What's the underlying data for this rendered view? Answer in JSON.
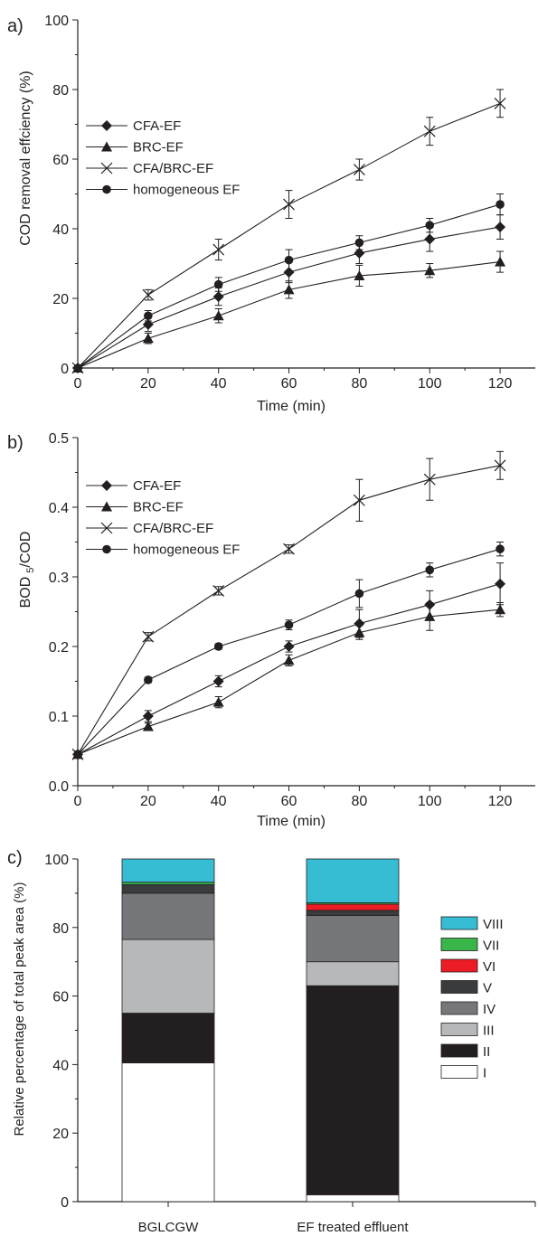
{
  "chart_data": [
    {
      "panel_label": "a)",
      "type": "line",
      "xlabel": "Time (min)",
      "ylabel": "COD removal effciency (%)",
      "xlim": [
        0,
        130
      ],
      "ylim": [
        0,
        100
      ],
      "x_ticks": [
        0,
        20,
        40,
        60,
        80,
        100,
        120
      ],
      "x_tick_labels": [
        "0",
        "20",
        "40",
        "60",
        "80",
        "100",
        "120"
      ],
      "y_ticks": [
        0,
        20,
        40,
        60,
        80,
        100
      ],
      "y_tick_labels": [
        "0",
        "20",
        "40",
        "60",
        "80",
        "100"
      ],
      "x": [
        0,
        20,
        40,
        60,
        80,
        100,
        120
      ],
      "legend_position": "top-left",
      "series": [
        {
          "name": "CFA-EF",
          "marker": "diamond",
          "values": [
            0,
            12.5,
            20.5,
            27.5,
            33,
            37,
            40.5
          ],
          "errors": [
            0,
            2,
            2.5,
            3,
            3,
            3.5,
            3.5
          ]
        },
        {
          "name": "BRC-EF",
          "marker": "triangle",
          "values": [
            0,
            8.5,
            15,
            22.5,
            26.5,
            28,
            30.5
          ],
          "errors": [
            0,
            1.5,
            2,
            2.5,
            3,
            2,
            3
          ]
        },
        {
          "name": "CFA/BRC-EF",
          "marker": "cross",
          "values": [
            0,
            21,
            34,
            47,
            57,
            68,
            76
          ],
          "errors": [
            0,
            1.5,
            3,
            4,
            3,
            4,
            4
          ]
        },
        {
          "name": "homogeneous EF",
          "marker": "circle",
          "values": [
            0,
            15,
            24,
            31,
            36,
            41,
            47
          ],
          "errors": [
            0,
            1.5,
            2,
            3,
            2,
            2,
            3
          ]
        }
      ]
    },
    {
      "panel_label": "b)",
      "type": "line",
      "xlabel": "Time (min)",
      "ylabel_main": "BOD",
      "ylabel_sub": "5",
      "ylabel_tail": "/COD",
      "xlim": [
        0,
        130
      ],
      "ylim": [
        0,
        0.5
      ],
      "x_ticks": [
        0,
        20,
        40,
        60,
        80,
        100,
        120
      ],
      "x_tick_labels": [
        "0",
        "20",
        "40",
        "60",
        "80",
        "100",
        "120"
      ],
      "y_ticks": [
        0,
        0.1,
        0.2,
        0.3,
        0.4,
        0.5
      ],
      "y_tick_labels": [
        "0.0",
        "0.1",
        "0.2",
        "0.3",
        "0.4",
        "0.5"
      ],
      "x": [
        0,
        20,
        40,
        60,
        80,
        100,
        120
      ],
      "legend_position": "top-left",
      "series": [
        {
          "name": "CFA-EF",
          "marker": "diamond",
          "values": [
            0.045,
            0.1,
            0.15,
            0.2,
            0.233,
            0.26,
            0.29
          ],
          "errors": [
            0,
            0.008,
            0.008,
            0.008,
            0.02,
            0.02,
            0.03
          ]
        },
        {
          "name": "BRC-EF",
          "marker": "triangle",
          "values": [
            0.045,
            0.085,
            0.12,
            0.18,
            0.22,
            0.243,
            0.253
          ],
          "errors": [
            0,
            0.005,
            0.008,
            0.008,
            0.01,
            0.02,
            0.01
          ]
        },
        {
          "name": "CFA/BRC-EF",
          "marker": "cross",
          "values": [
            0.045,
            0.214,
            0.28,
            0.34,
            0.41,
            0.44,
            0.46
          ],
          "errors": [
            0,
            0.006,
            0.006,
            0.006,
            0.03,
            0.03,
            0.02
          ]
        },
        {
          "name": "homogeneous EF",
          "marker": "circle",
          "values": [
            0.045,
            0.152,
            0.2,
            0.231,
            0.276,
            0.31,
            0.34
          ],
          "errors": [
            0,
            0.004,
            0.004,
            0.007,
            0.02,
            0.01,
            0.01
          ]
        }
      ]
    },
    {
      "panel_label": "c)",
      "type": "bar",
      "stacked": true,
      "ylabel": "Relative percentage of total peak area (%)",
      "ylim": [
        0,
        100
      ],
      "y_ticks": [
        0,
        20,
        40,
        60,
        80,
        100
      ],
      "y_tick_labels": [
        "0",
        "20",
        "40",
        "60",
        "80",
        "100"
      ],
      "categories": [
        "BGLCGW",
        "EF treated effluent"
      ],
      "legend_position": "top-right",
      "series": [
        {
          "name": "I",
          "color": "#ffffff",
          "values": [
            40.5,
            2
          ]
        },
        {
          "name": "II",
          "color": "#231f20",
          "values": [
            14.5,
            61
          ]
        },
        {
          "name": "III",
          "color": "#b7b8ba",
          "values": [
            21.5,
            7
          ]
        },
        {
          "name": "IV",
          "color": "#76777a",
          "values": [
            13.5,
            13.5
          ]
        },
        {
          "name": "V",
          "color": "#3a3b3d",
          "values": [
            2.5,
            1.5
          ]
        },
        {
          "name": "VI",
          "color": "#ec1c24",
          "values": [
            0,
            1.8
          ]
        },
        {
          "name": "VII",
          "color": "#39b54a",
          "values": [
            0.7,
            0.4
          ]
        },
        {
          "name": "VIII",
          "color": "#36bcd3",
          "values": [
            6.8,
            12.8
          ]
        }
      ]
    }
  ]
}
